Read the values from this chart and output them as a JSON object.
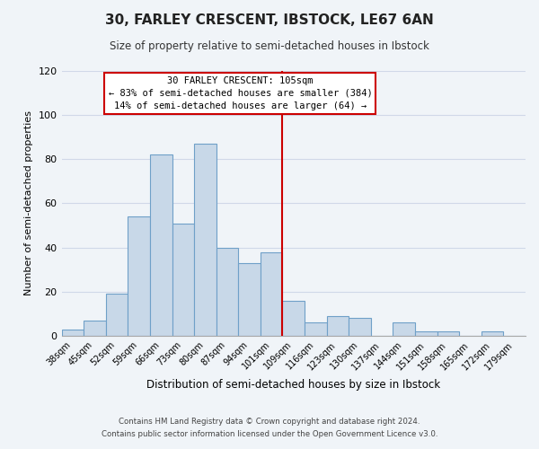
{
  "title": "30, FARLEY CRESCENT, IBSTOCK, LE67 6AN",
  "subtitle": "Size of property relative to semi-detached houses in Ibstock",
  "xlabel": "Distribution of semi-detached houses by size in Ibstock",
  "ylabel": "Number of semi-detached properties",
  "categories": [
    "38sqm",
    "45sqm",
    "52sqm",
    "59sqm",
    "66sqm",
    "73sqm",
    "80sqm",
    "87sqm",
    "94sqm",
    "101sqm",
    "109sqm",
    "116sqm",
    "123sqm",
    "130sqm",
    "137sqm",
    "144sqm",
    "151sqm",
    "158sqm",
    "165sqm",
    "172sqm",
    "179sqm"
  ],
  "values": [
    3,
    7,
    19,
    54,
    82,
    51,
    87,
    40,
    33,
    38,
    16,
    6,
    9,
    8,
    0,
    6,
    2,
    2,
    0,
    2,
    0
  ],
  "bar_color": "#c8d8e8",
  "bar_edge_color": "#6fa0c8",
  "grid_color": "#d0d8e8",
  "background_color": "#f0f4f8",
  "vline_color": "#cc0000",
  "annotation_title": "30 FARLEY CRESCENT: 105sqm",
  "annotation_line1": "← 83% of semi-detached houses are smaller (384)",
  "annotation_line2": "14% of semi-detached houses are larger (64) →",
  "annotation_box_color": "#ffffff",
  "annotation_box_edge": "#cc0000",
  "footer_line1": "Contains HM Land Registry data © Crown copyright and database right 2024.",
  "footer_line2": "Contains public sector information licensed under the Open Government Licence v3.0.",
  "ylim": [
    0,
    120
  ],
  "yticks": [
    0,
    20,
    40,
    60,
    80,
    100,
    120
  ]
}
